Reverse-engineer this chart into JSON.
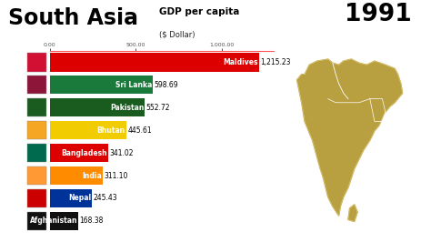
{
  "title_left": "South Asia",
  "title_mid": "GDP per capita",
  "title_mid_sub": "($ Dollar)",
  "title_year": "1991",
  "countries": [
    "Maldives",
    "Sri Lanka",
    "Pakistan",
    "Bhutan",
    "Bangladesh",
    "India",
    "Nepal",
    "Afghanistan"
  ],
  "values": [
    1215.23,
    598.69,
    552.72,
    445.61,
    341.02,
    311.1,
    245.43,
    168.38
  ],
  "bar_colors": [
    "#dd0000",
    "#1a7a3c",
    "#1a5c20",
    "#f0cc00",
    "#dd0000",
    "#ff8c00",
    "#003399",
    "#111111"
  ],
  "value_labels": [
    "1,215.23",
    "598.69",
    "552.72",
    "445.61",
    "341.02",
    "311.10",
    "245.43",
    "168.38"
  ],
  "flag_bg": [
    "#d21034",
    "#cc0000",
    "#01411c",
    "#ff6600",
    "#006a4e",
    "#ff9933",
    "#cc0000",
    "#000000"
  ],
  "x_max": 1300,
  "x_ticks": [
    0,
    500,
    1000
  ],
  "x_tick_labels": [
    "0.00",
    "500.00",
    "1,000.00"
  ],
  "background_color": "#ffffff",
  "map_color": "#b8a040",
  "map_border_color": "#d4bc60"
}
